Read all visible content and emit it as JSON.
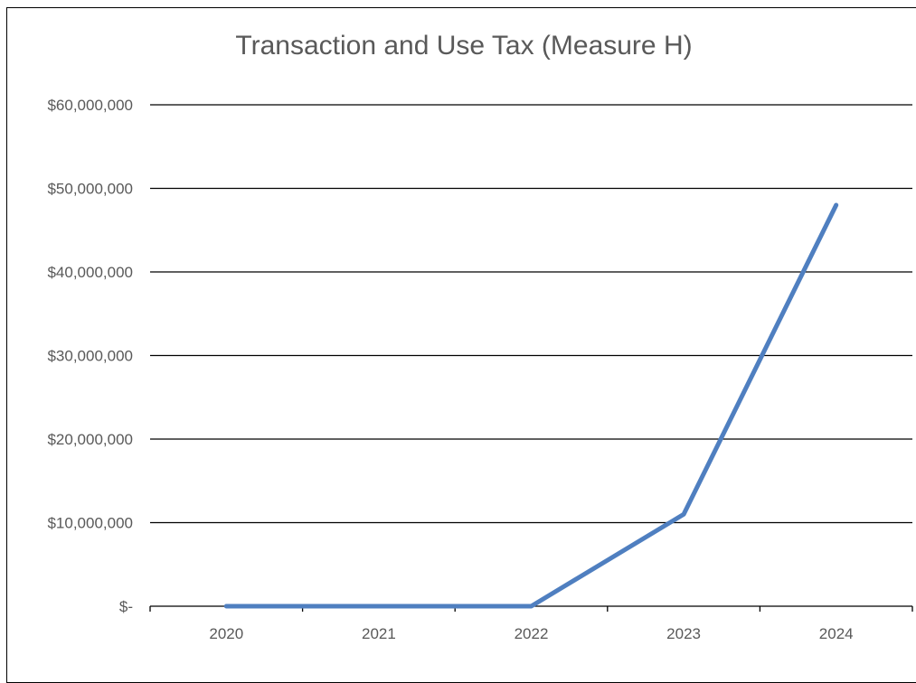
{
  "chart_data": {
    "type": "line",
    "title": "Transaction and Use Tax (Measure H)",
    "xlabel": "",
    "ylabel": "",
    "categories": [
      "2020",
      "2021",
      "2022",
      "2023",
      "2024"
    ],
    "series": [
      {
        "values": [
          0,
          0,
          0,
          11000000,
          48000000
        ]
      }
    ],
    "ylim": [
      0,
      60000000
    ],
    "y_ticks": [
      0,
      10000000,
      20000000,
      30000000,
      40000000,
      50000000,
      60000000
    ],
    "y_tick_labels": [
      "$-",
      "$10,000,000",
      "$20,000,000",
      "$30,000,000",
      "$40,000,000",
      "$50,000,000",
      "$60,000,000"
    ],
    "grid": true,
    "legend": "none",
    "colors": {
      "line": "#4f7fc0",
      "grid": "#000000",
      "text": "#595959"
    }
  }
}
